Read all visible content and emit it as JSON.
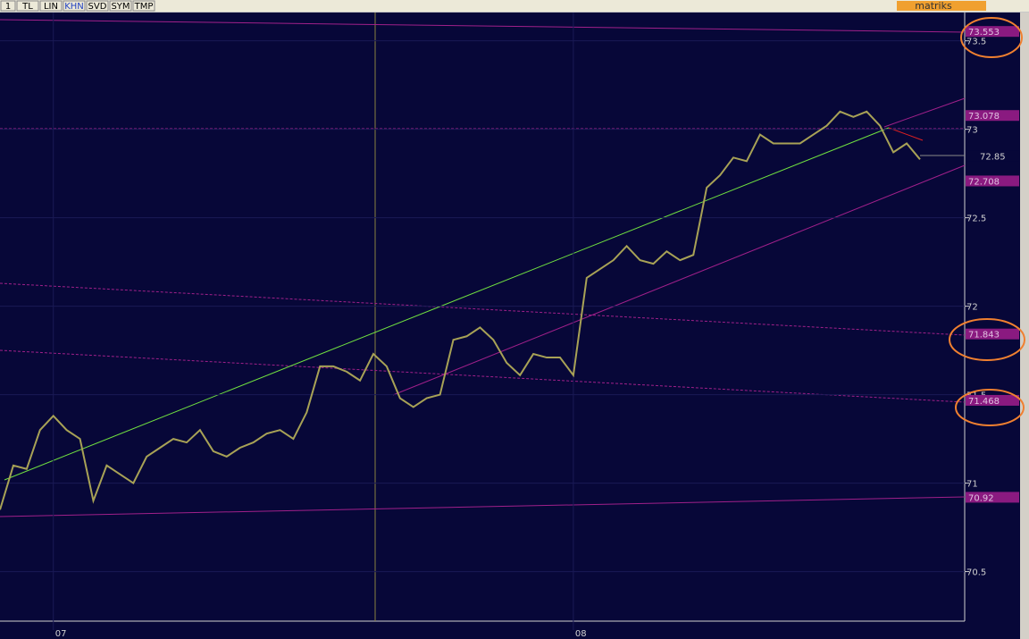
{
  "toolbar": {
    "buttons": [
      "1",
      "TL",
      "LIN",
      "KHN",
      "SVD",
      "SYM",
      "TMP"
    ],
    "brand": "matriks"
  },
  "chart_data": {
    "type": "line",
    "color": "#a8a256",
    "categories": [
      null,
      null,
      null,
      null,
      "07",
      null,
      null,
      null,
      null,
      null,
      null,
      null,
      null,
      null,
      null,
      null,
      null,
      null,
      null,
      null,
      null,
      null,
      null,
      null,
      null,
      null,
      null,
      null,
      null,
      null,
      null,
      null,
      null,
      null,
      null,
      null,
      null,
      null,
      null,
      null,
      null,
      null,
      null,
      "08",
      null,
      null,
      null,
      null,
      null,
      null,
      null,
      null,
      null,
      null,
      null,
      null,
      null,
      null,
      null,
      null,
      null,
      null,
      null,
      null,
      null,
      null,
      null,
      null,
      null,
      null
    ],
    "values": [
      70.85,
      71.1,
      71.08,
      71.3,
      71.38,
      71.3,
      71.25,
      70.9,
      71.1,
      71.05,
      71.0,
      71.15,
      71.2,
      71.25,
      71.23,
      71.3,
      71.18,
      71.15,
      71.2,
      71.23,
      71.28,
      71.3,
      71.25,
      71.4,
      71.66,
      71.66,
      71.63,
      71.58,
      71.73,
      71.66,
      71.48,
      71.43,
      71.48,
      71.5,
      71.81,
      71.83,
      71.88,
      71.81,
      71.68,
      71.61,
      71.73,
      71.71,
      71.71,
      71.61,
      72.16,
      72.21,
      72.26,
      72.34,
      72.26,
      72.24,
      72.31,
      72.26,
      72.29,
      72.67,
      72.74,
      72.84,
      72.82,
      72.97,
      72.92,
      72.92,
      72.92,
      72.97,
      73.02,
      73.1,
      73.07,
      73.1,
      73.02,
      72.87,
      72.92,
      72.83
    ],
    "ylim": [
      70.22,
      73.66
    ],
    "yticks": [
      70.5,
      71,
      71.5,
      72,
      72.5,
      73,
      73.5
    ],
    "grid": true,
    "levels": [
      73.553,
      73.078,
      72.708,
      71.843,
      71.468,
      70.92
    ],
    "last_price": 72.85
  }
}
